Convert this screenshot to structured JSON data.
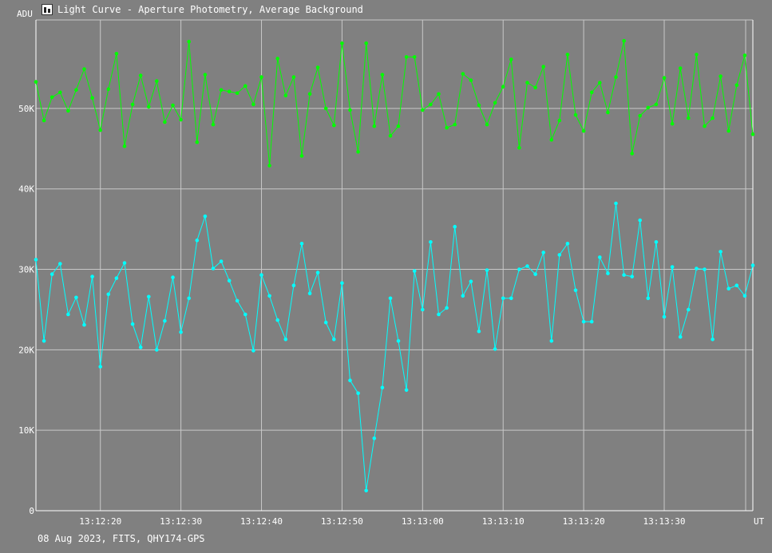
{
  "window": {
    "title": "Light Curve - Aperture Photometry, Average Background",
    "icon": "light-curve-app-icon"
  },
  "footer": {
    "caption": "08 Aug 2023, FITS, QHY174-GPS"
  },
  "colors": {
    "background": "#808080",
    "grid": "#c8c8c8",
    "series_target": "#00ff00",
    "series_comparison": "#00ffff",
    "text": "#ffffff"
  },
  "chart_data": {
    "type": "line",
    "title": "Light Curve - Aperture Photometry, Average Background",
    "xlabel": "UT",
    "ylabel": "ADU",
    "ylim": [
      0,
      61000
    ],
    "grid": true,
    "y_ticks": [
      {
        "value": 0,
        "label": "0"
      },
      {
        "value": 10000,
        "label": "10K"
      },
      {
        "value": 20000,
        "label": "20K"
      },
      {
        "value": 30000,
        "label": "30K"
      },
      {
        "value": 40000,
        "label": "40K"
      },
      {
        "value": 50000,
        "label": "50K"
      }
    ],
    "x_ticks": [
      "13:12:20",
      "13:12:30",
      "13:12:40",
      "13:12:50",
      "13:13:00",
      "13:13:10",
      "13:13:20",
      "13:13:30"
    ],
    "x_start": "13:12:12.0",
    "x_step_seconds": 1.0,
    "series": [
      {
        "color": "#00ff00",
        "values": [
          53300,
          48500,
          51400,
          52000,
          49700,
          52300,
          54900,
          51300,
          47300,
          52400,
          56800,
          45300,
          50500,
          54100,
          50200,
          53400,
          48300,
          50400,
          48600,
          58300,
          45800,
          54200,
          48000,
          52300,
          52100,
          51900,
          52800,
          50500,
          53900,
          42900,
          56200,
          51600,
          53900,
          44100,
          51800,
          55100,
          50000,
          47900,
          58100,
          49800,
          44600,
          58100,
          47800,
          54200,
          46600,
          47800,
          56400,
          56400,
          49800,
          50500,
          51800,
          47600,
          48000,
          54300,
          53500,
          50400,
          48000,
          50700,
          52700,
          56100,
          45100,
          53200,
          52600,
          55200,
          46100,
          48500,
          56700,
          49200,
          47200,
          52000,
          53200,
          49500,
          53900,
          58400,
          44400,
          49100,
          50100,
          50500,
          53800,
          48100,
          55000,
          48800,
          56700,
          47800,
          48800,
          54000,
          47200,
          52900,
          56600,
          46800
        ]
      },
      {
        "color": "#00ffff",
        "values": [
          31200,
          21100,
          29400,
          30700,
          24400,
          26500,
          23100,
          29100,
          17900,
          26900,
          28900,
          30800,
          23200,
          20300,
          26600,
          20000,
          23600,
          29000,
          22200,
          26400,
          33600,
          36600,
          30100,
          31000,
          28600,
          26100,
          24400,
          19900,
          29300,
          26700,
          23700,
          21300,
          28000,
          33200,
          27000,
          29600,
          23400,
          21300,
          28300,
          16200,
          14600,
          2500,
          9000,
          15300,
          26400,
          21100,
          15000,
          29800,
          25000,
          33400,
          24400,
          25200,
          35300,
          26700,
          28500,
          22300,
          29900,
          20100,
          26400,
          26400,
          30000,
          30400,
          29400,
          32100,
          21100,
          31800,
          33200,
          27400,
          23500,
          23500,
          31500,
          29500,
          38200,
          29300,
          29100,
          36100,
          26400,
          33400,
          24100,
          30300,
          21600,
          25000,
          30100,
          30000,
          21300,
          32200,
          27600,
          28000,
          26700,
          30500
        ]
      }
    ]
  }
}
